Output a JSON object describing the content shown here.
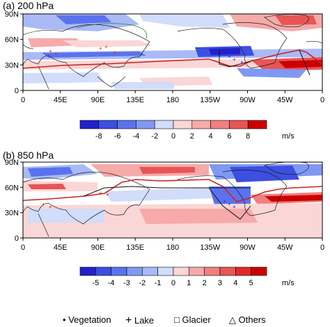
{
  "panels": [
    {
      "id": "a",
      "title": "(a) 200 hPa",
      "y_ticks": [
        "90N",
        "60N",
        "30N",
        "0"
      ],
      "x_ticks": [
        "0",
        "45E",
        "90E",
        "135E",
        "180",
        "135W",
        "90W",
        "45W",
        "0"
      ],
      "colorbar_labels": [
        "-8",
        "-6",
        "-4",
        "-2",
        "0",
        "2",
        "4",
        "6",
        "8"
      ],
      "colorbar_unit": "m/s"
    },
    {
      "id": "b",
      "title": "(b) 850 hPa",
      "y_ticks": [
        "90N",
        "60N",
        "30N",
        "0"
      ],
      "x_ticks": [
        "0",
        "45E",
        "90E",
        "135E",
        "180",
        "135W",
        "90W",
        "45W",
        "0"
      ],
      "colorbar_labels": [
        "-5",
        "-4",
        "-3",
        "-2",
        "-1",
        "0",
        "1",
        "2",
        "3",
        "4",
        "5"
      ],
      "colorbar_unit": "m/s"
    }
  ],
  "colors": {
    "blue_scale": [
      "#2222cc",
      "#3c4fe0",
      "#5b72ee",
      "#8098f4",
      "#a9baf7",
      "#d2dcfb"
    ],
    "red_scale": [
      "#fbd6d6",
      "#f6aaaa",
      "#f07f7f",
      "#e85555",
      "#e02a2a",
      "#cc0000"
    ],
    "neutral": "#ffffff",
    "plateau_line": "#cc2222",
    "region_line": "#111111",
    "coast_line": "#1a1a1a"
  },
  "legend": [
    {
      "symbol": "•",
      "label": "Vegetation"
    },
    {
      "symbol": "+",
      "label": "Lake"
    },
    {
      "symbol": "□",
      "label": "Glacier"
    },
    {
      "symbol": "△",
      "label": "Others"
    }
  ]
}
